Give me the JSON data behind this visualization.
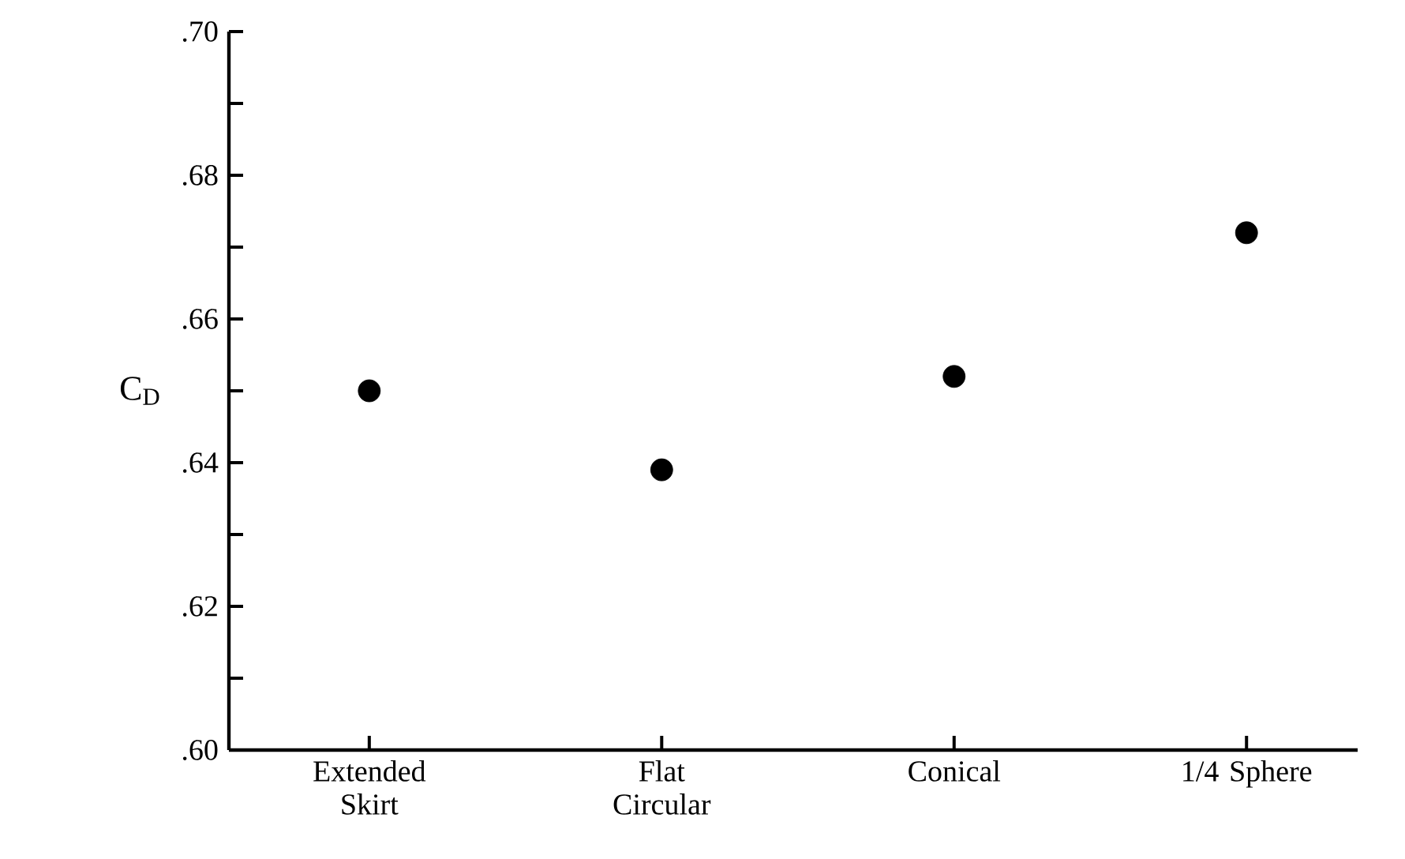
{
  "chart_data": {
    "type": "scatter",
    "ylabel": "C$_{D}$",
    "categories": [
      "Extended Skirt",
      "Flat Circular",
      "Conical",
      "1/4 Sphere"
    ],
    "values": [
      0.65,
      0.639,
      0.652,
      0.672
    ],
    "color": "#000000",
    "marker": "circle",
    "ylim": [
      0.6,
      0.7
    ],
    "yticks": [
      {
        "value": 0.6,
        "label": ".60"
      },
      {
        "value": 0.61,
        "label": null
      },
      {
        "value": 0.62,
        "label": ".62"
      },
      {
        "value": 0.63,
        "label": null
      },
      {
        "value": 0.64,
        "label": ".64"
      },
      {
        "value": 0.65,
        "label": null
      },
      {
        "value": 0.66,
        "label": ".66"
      },
      {
        "value": 0.67,
        "label": null
      },
      {
        "value": 0.68,
        "label": ".68"
      },
      {
        "value": 0.69,
        "label": null
      },
      {
        "value": 0.7,
        "label": ".70"
      }
    ]
  }
}
